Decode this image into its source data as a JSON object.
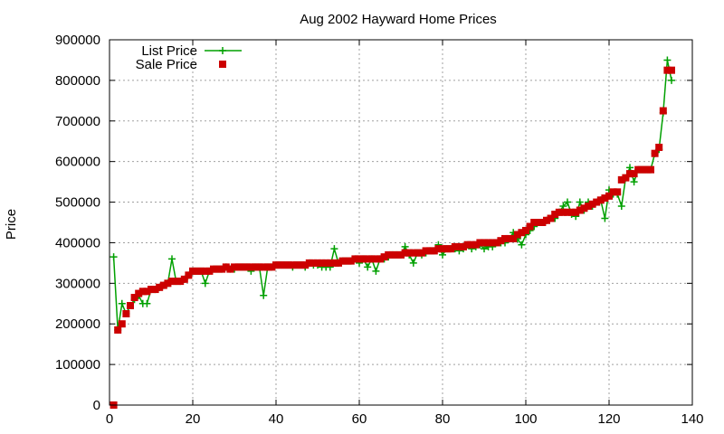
{
  "chart_data": {
    "type": "line",
    "title": "Aug 2002 Hayward Home Prices",
    "xlabel": "",
    "ylabel": "Price",
    "xlim": [
      0,
      140
    ],
    "ylim": [
      0,
      900000
    ],
    "x_ticks": [
      0,
      20,
      40,
      60,
      80,
      100,
      120,
      140
    ],
    "y_ticks": [
      0,
      100000,
      200000,
      300000,
      400000,
      500000,
      600000,
      700000,
      800000,
      900000
    ],
    "grid": true,
    "legend_position": "top-left",
    "series": [
      {
        "name": "List Price",
        "color": "#00a000",
        "marker": "plus",
        "line": true,
        "values": [
          365000,
          185000,
          250000,
          225000,
          245000,
          260000,
          270000,
          250000,
          250000,
          285000,
          285000,
          290000,
          295000,
          300000,
          360000,
          305000,
          305000,
          310000,
          320000,
          330000,
          330000,
          330000,
          300000,
          330000,
          335000,
          335000,
          335000,
          340000,
          335000,
          335000,
          340000,
          340000,
          340000,
          330000,
          340000,
          340000,
          270000,
          340000,
          340000,
          345000,
          345000,
          345000,
          345000,
          340000,
          345000,
          345000,
          340000,
          350000,
          345000,
          345000,
          340000,
          340000,
          340000,
          385000,
          350000,
          355000,
          355000,
          355000,
          360000,
          350000,
          360000,
          340000,
          360000,
          330000,
          360000,
          360000,
          365000,
          370000,
          370000,
          370000,
          390000,
          370000,
          350000,
          375000,
          370000,
          375000,
          380000,
          380000,
          395000,
          370000,
          385000,
          385000,
          385000,
          380000,
          385000,
          395000,
          385000,
          390000,
          395000,
          385000,
          390000,
          390000,
          400000,
          400000,
          400000,
          410000,
          425000,
          410000,
          395000,
          420000,
          430000,
          440000,
          450000,
          450000,
          455000,
          460000,
          460000,
          475000,
          490000,
          500000,
          470000,
          465000,
          500000,
          480000,
          500000,
          490000,
          500000,
          505000,
          460000,
          530000,
          520000,
          520000,
          490000,
          560000,
          585000,
          550000,
          580000,
          580000,
          580000,
          580000,
          620000,
          630000,
          720000,
          850000,
          800000
        ],
        "last_x": 135
      },
      {
        "name": "Sale Price",
        "color": "#cc0000",
        "marker": "square",
        "line": false,
        "values": [
          0,
          185000,
          200000,
          225000,
          245000,
          265000,
          275000,
          280000,
          280000,
          285000,
          285000,
          290000,
          295000,
          300000,
          305000,
          305000,
          305000,
          310000,
          320000,
          330000,
          330000,
          330000,
          330000,
          330000,
          335000,
          335000,
          335000,
          340000,
          335000,
          340000,
          340000,
          340000,
          340000,
          340000,
          340000,
          340000,
          340000,
          340000,
          340000,
          345000,
          345000,
          345000,
          345000,
          345000,
          345000,
          345000,
          345000,
          350000,
          350000,
          350000,
          350000,
          350000,
          350000,
          350000,
          350000,
          355000,
          355000,
          355000,
          360000,
          360000,
          360000,
          360000,
          360000,
          360000,
          360000,
          365000,
          370000,
          370000,
          370000,
          370000,
          375000,
          375000,
          375000,
          375000,
          375000,
          380000,
          380000,
          380000,
          385000,
          385000,
          385000,
          385000,
          390000,
          390000,
          390000,
          395000,
          395000,
          395000,
          400000,
          400000,
          400000,
          400000,
          400000,
          405000,
          410000,
          410000,
          410000,
          420000,
          425000,
          430000,
          440000,
          450000,
          450000,
          450000,
          455000,
          460000,
          470000,
          475000,
          475000,
          475000,
          475000,
          475000,
          480000,
          485000,
          490000,
          495000,
          500000,
          505000,
          510000,
          515000,
          525000,
          525000,
          555000,
          560000,
          570000,
          570000,
          580000,
          580000,
          580000,
          580000,
          620000,
          635000,
          725000,
          825000,
          825000
        ]
      }
    ]
  }
}
